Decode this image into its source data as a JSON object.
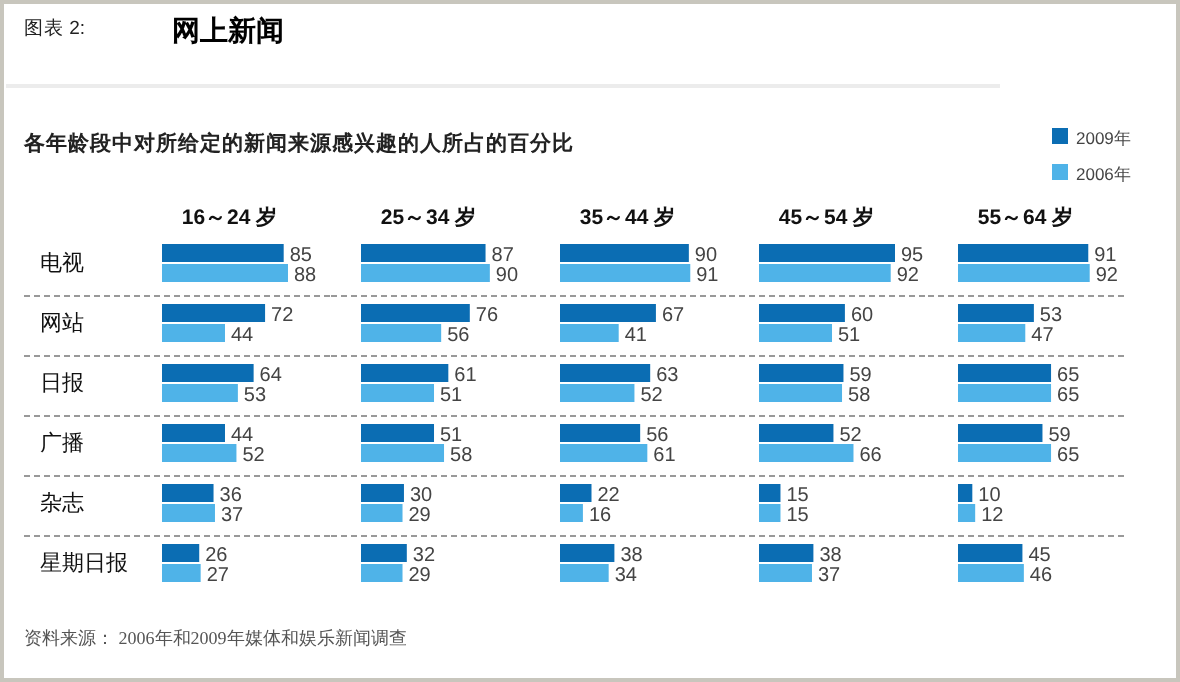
{
  "chart_data": [
    {
      "type": "bar",
      "orientation": "horizontal",
      "title": "16～24 岁",
      "categories": [
        "电视",
        "网站",
        "日报",
        "广播",
        "杂志",
        "星期日报"
      ],
      "series": [
        {
          "color": "#0b6db3",
          "values": [
            85,
            72,
            64,
            44,
            36,
            26
          ]
        },
        {
          "color": "#4fb3e8",
          "values": [
            88,
            44,
            53,
            52,
            37,
            27
          ]
        }
      ],
      "data_labels": true,
      "grid": "y",
      "annotations": [
        "图表 2:",
        "网上新闻",
        "各年龄段中对所给定的新闻来源感兴趣的人所占的百分比",
        "资料来源：  2006年和2009年媒体和娱乐新闻调查"
      ]
    },
    {
      "type": "bar",
      "orientation": "horizontal",
      "title": "25～34 岁",
      "series": [
        {
          "color": "#0b6db3",
          "values": [
            87,
            76,
            61,
            51,
            30,
            32
          ]
        },
        {
          "color": "#4fb3e8",
          "values": [
            90,
            56,
            51,
            58,
            29,
            29
          ]
        }
      ],
      "data_labels": true,
      "grid": "y"
    },
    {
      "type": "bar",
      "orientation": "horizontal",
      "title": "35～44 岁",
      "series": [
        {
          "color": "#0b6db3",
          "values": [
            90,
            67,
            63,
            56,
            22,
            38
          ]
        },
        {
          "color": "#4fb3e8",
          "values": [
            91,
            41,
            52,
            61,
            16,
            34
          ]
        }
      ],
      "data_labels": true,
      "grid": "y"
    },
    {
      "type": "bar",
      "orientation": "horizontal",
      "title": "45～54 岁",
      "series": [
        {
          "color": "#0b6db3",
          "values": [
            95,
            60,
            59,
            52,
            15,
            38
          ]
        },
        {
          "color": "#4fb3e8",
          "values": [
            92,
            51,
            58,
            66,
            15,
            37
          ]
        }
      ],
      "data_labels": true,
      "grid": "y"
    },
    {
      "type": "bar",
      "orientation": "horizontal",
      "title": "55～64 岁",
      "series": [
        {
          "name": "2009年",
          "color": "#0b6db3",
          "values": [
            91,
            53,
            65,
            59,
            10,
            45
          ]
        },
        {
          "name": "2006年",
          "color": "#4fb3e8",
          "values": [
            92,
            47,
            65,
            65,
            12,
            46
          ]
        }
      ],
      "data_labels": true,
      "grid": "y",
      "legend": "top right"
    }
  ]
}
